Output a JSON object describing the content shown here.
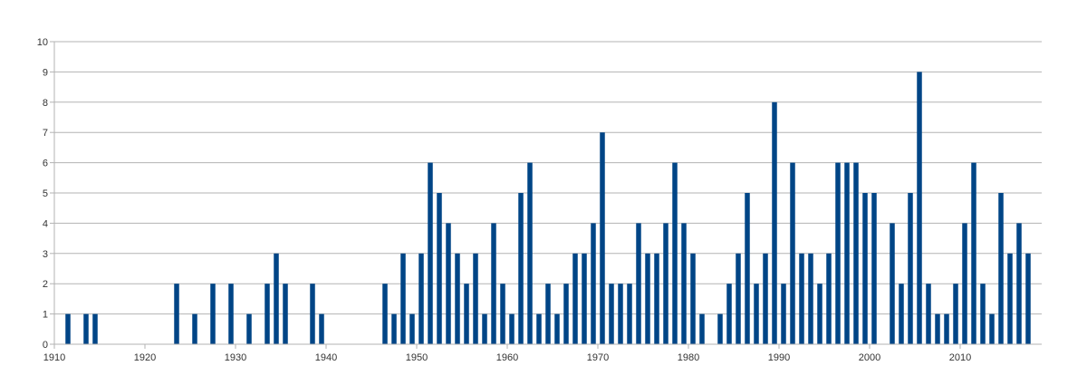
{
  "chart_data": {
    "type": "bar",
    "title": "",
    "xlabel": "",
    "ylabel": "",
    "xlim": [
      1910,
      2019
    ],
    "ylim": [
      0,
      10
    ],
    "grid": true,
    "x_ticks": [
      1910,
      1920,
      1930,
      1940,
      1950,
      1960,
      1970,
      1980,
      1990,
      2000,
      2010
    ],
    "y_ticks": [
      0,
      1,
      2,
      3,
      4,
      5,
      6,
      7,
      8,
      9,
      10
    ],
    "color": "#004586",
    "series": [
      {
        "x": [
          1911,
          1913,
          1914,
          1923,
          1925,
          1927,
          1929,
          1931,
          1933,
          1934,
          1935,
          1938,
          1939,
          1946,
          1947,
          1948,
          1949,
          1950,
          1951,
          1952,
          1953,
          1954,
          1955,
          1956,
          1957,
          1958,
          1959,
          1960,
          1961,
          1962,
          1963,
          1964,
          1965,
          1966,
          1967,
          1968,
          1969,
          1970,
          1971,
          1972,
          1973,
          1974,
          1975,
          1976,
          1977,
          1978,
          1979,
          1980,
          1981,
          1983,
          1984,
          1985,
          1986,
          1987,
          1988,
          1989,
          1990,
          1991,
          1992,
          1993,
          1994,
          1995,
          1996,
          1997,
          1998,
          1999,
          2000,
          2002,
          2003,
          2004,
          2005,
          2006,
          2007,
          2008,
          2009,
          2010,
          2011,
          2012,
          2013,
          2014,
          2015,
          2016,
          2017
        ],
        "values": [
          1,
          1,
          1,
          2,
          1,
          2,
          2,
          1,
          2,
          3,
          2,
          2,
          1,
          2,
          1,
          3,
          1,
          3,
          6,
          5,
          4,
          3,
          2,
          3,
          1,
          4,
          2,
          1,
          5,
          6,
          1,
          2,
          1,
          2,
          3,
          3,
          4,
          7,
          2,
          2,
          2,
          4,
          3,
          3,
          4,
          6,
          4,
          3,
          1,
          1,
          2,
          3,
          5,
          2,
          3,
          8,
          2,
          6,
          3,
          3,
          2,
          3,
          6,
          6,
          6,
          5,
          5,
          4,
          2,
          5,
          9,
          2,
          1,
          1,
          2,
          4,
          6,
          2,
          1,
          5,
          3,
          4,
          3
        ]
      }
    ]
  }
}
